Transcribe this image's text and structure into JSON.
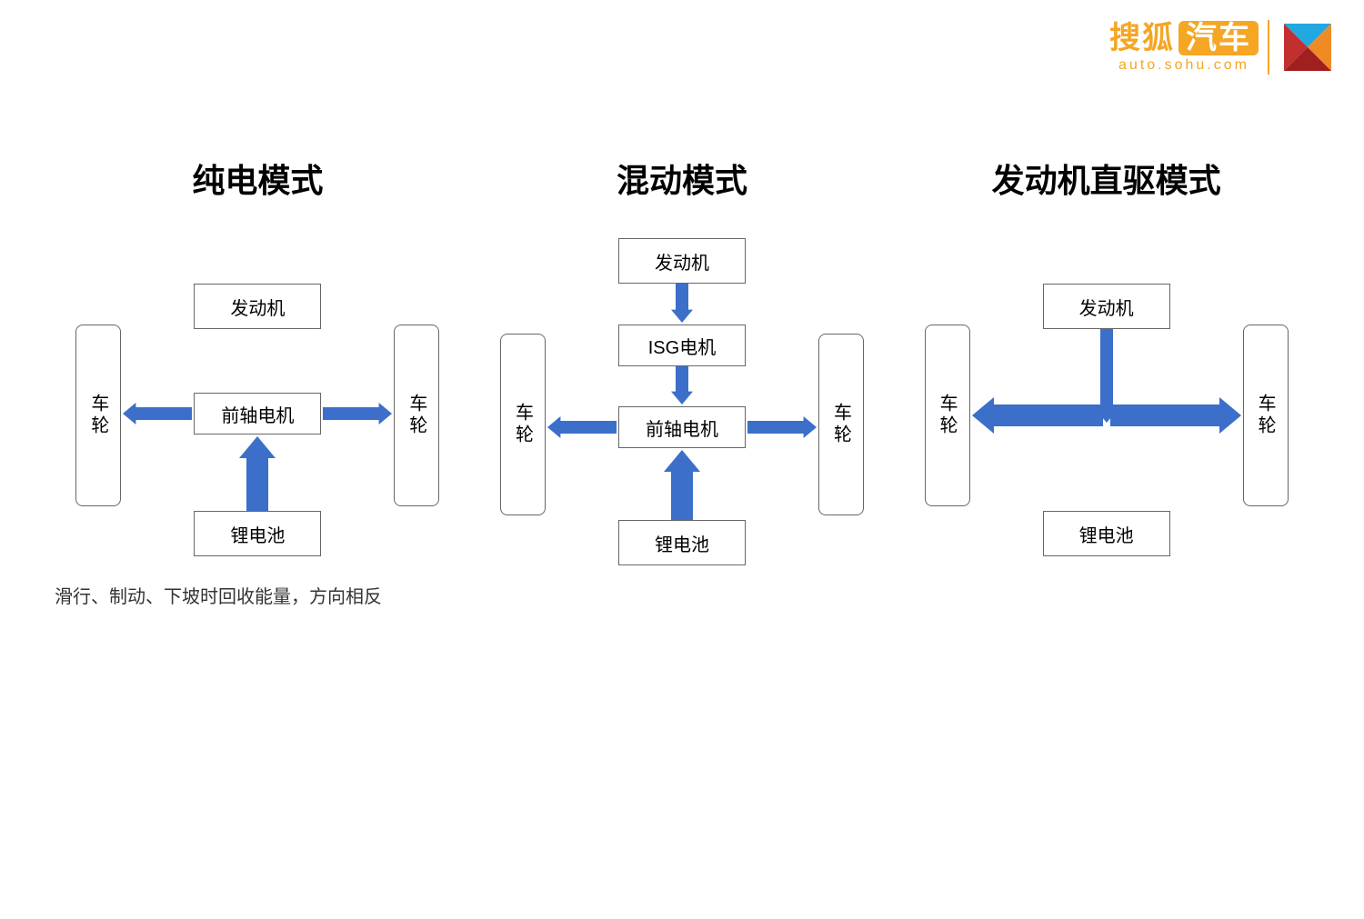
{
  "logo": {
    "main_left": "搜狐",
    "main_right": "汽车",
    "sub": "auto.sohu.com",
    "brand_color": "#f5a623",
    "icon_colors": {
      "top": "#22a8e0",
      "left": "#c22f2f",
      "right": "#f08a24",
      "bottom": "#a01f1f"
    }
  },
  "arrow_color": "#3b6fc9",
  "box_border_color": "#666666",
  "footnote": "滑行、制动、下坡时回收能量，方向相反",
  "diagrams": [
    {
      "title": "纯电模式",
      "engine": "发动机",
      "motor": "前轴电机",
      "battery": "锂电池",
      "wheel": "车轮",
      "has_isg": false,
      "arrows": {
        "engine_down": false,
        "isg_down": false,
        "battery_up": true,
        "battery_up_thick": true,
        "motor_left": true,
        "motor_right": true,
        "side_thick": false
      }
    },
    {
      "title": "混动模式",
      "engine": "发动机",
      "isg": "ISG电机",
      "motor": "前轴电机",
      "battery": "锂电池",
      "wheel": "车轮",
      "has_isg": true,
      "arrows": {
        "engine_down": true,
        "isg_down": true,
        "battery_up": true,
        "battery_up_thick": true,
        "motor_left": true,
        "motor_right": true,
        "side_thick": false
      }
    },
    {
      "title": "发动机直驱模式",
      "engine": "发动机",
      "motor": "",
      "battery": "锂电池",
      "wheel": "车轮",
      "has_isg": false,
      "has_motor": false,
      "arrows": {
        "engine_down": true,
        "engine_down_long": true,
        "isg_down": false,
        "battery_up": false,
        "motor_left": true,
        "motor_right": true,
        "side_thick": true
      }
    }
  ]
}
